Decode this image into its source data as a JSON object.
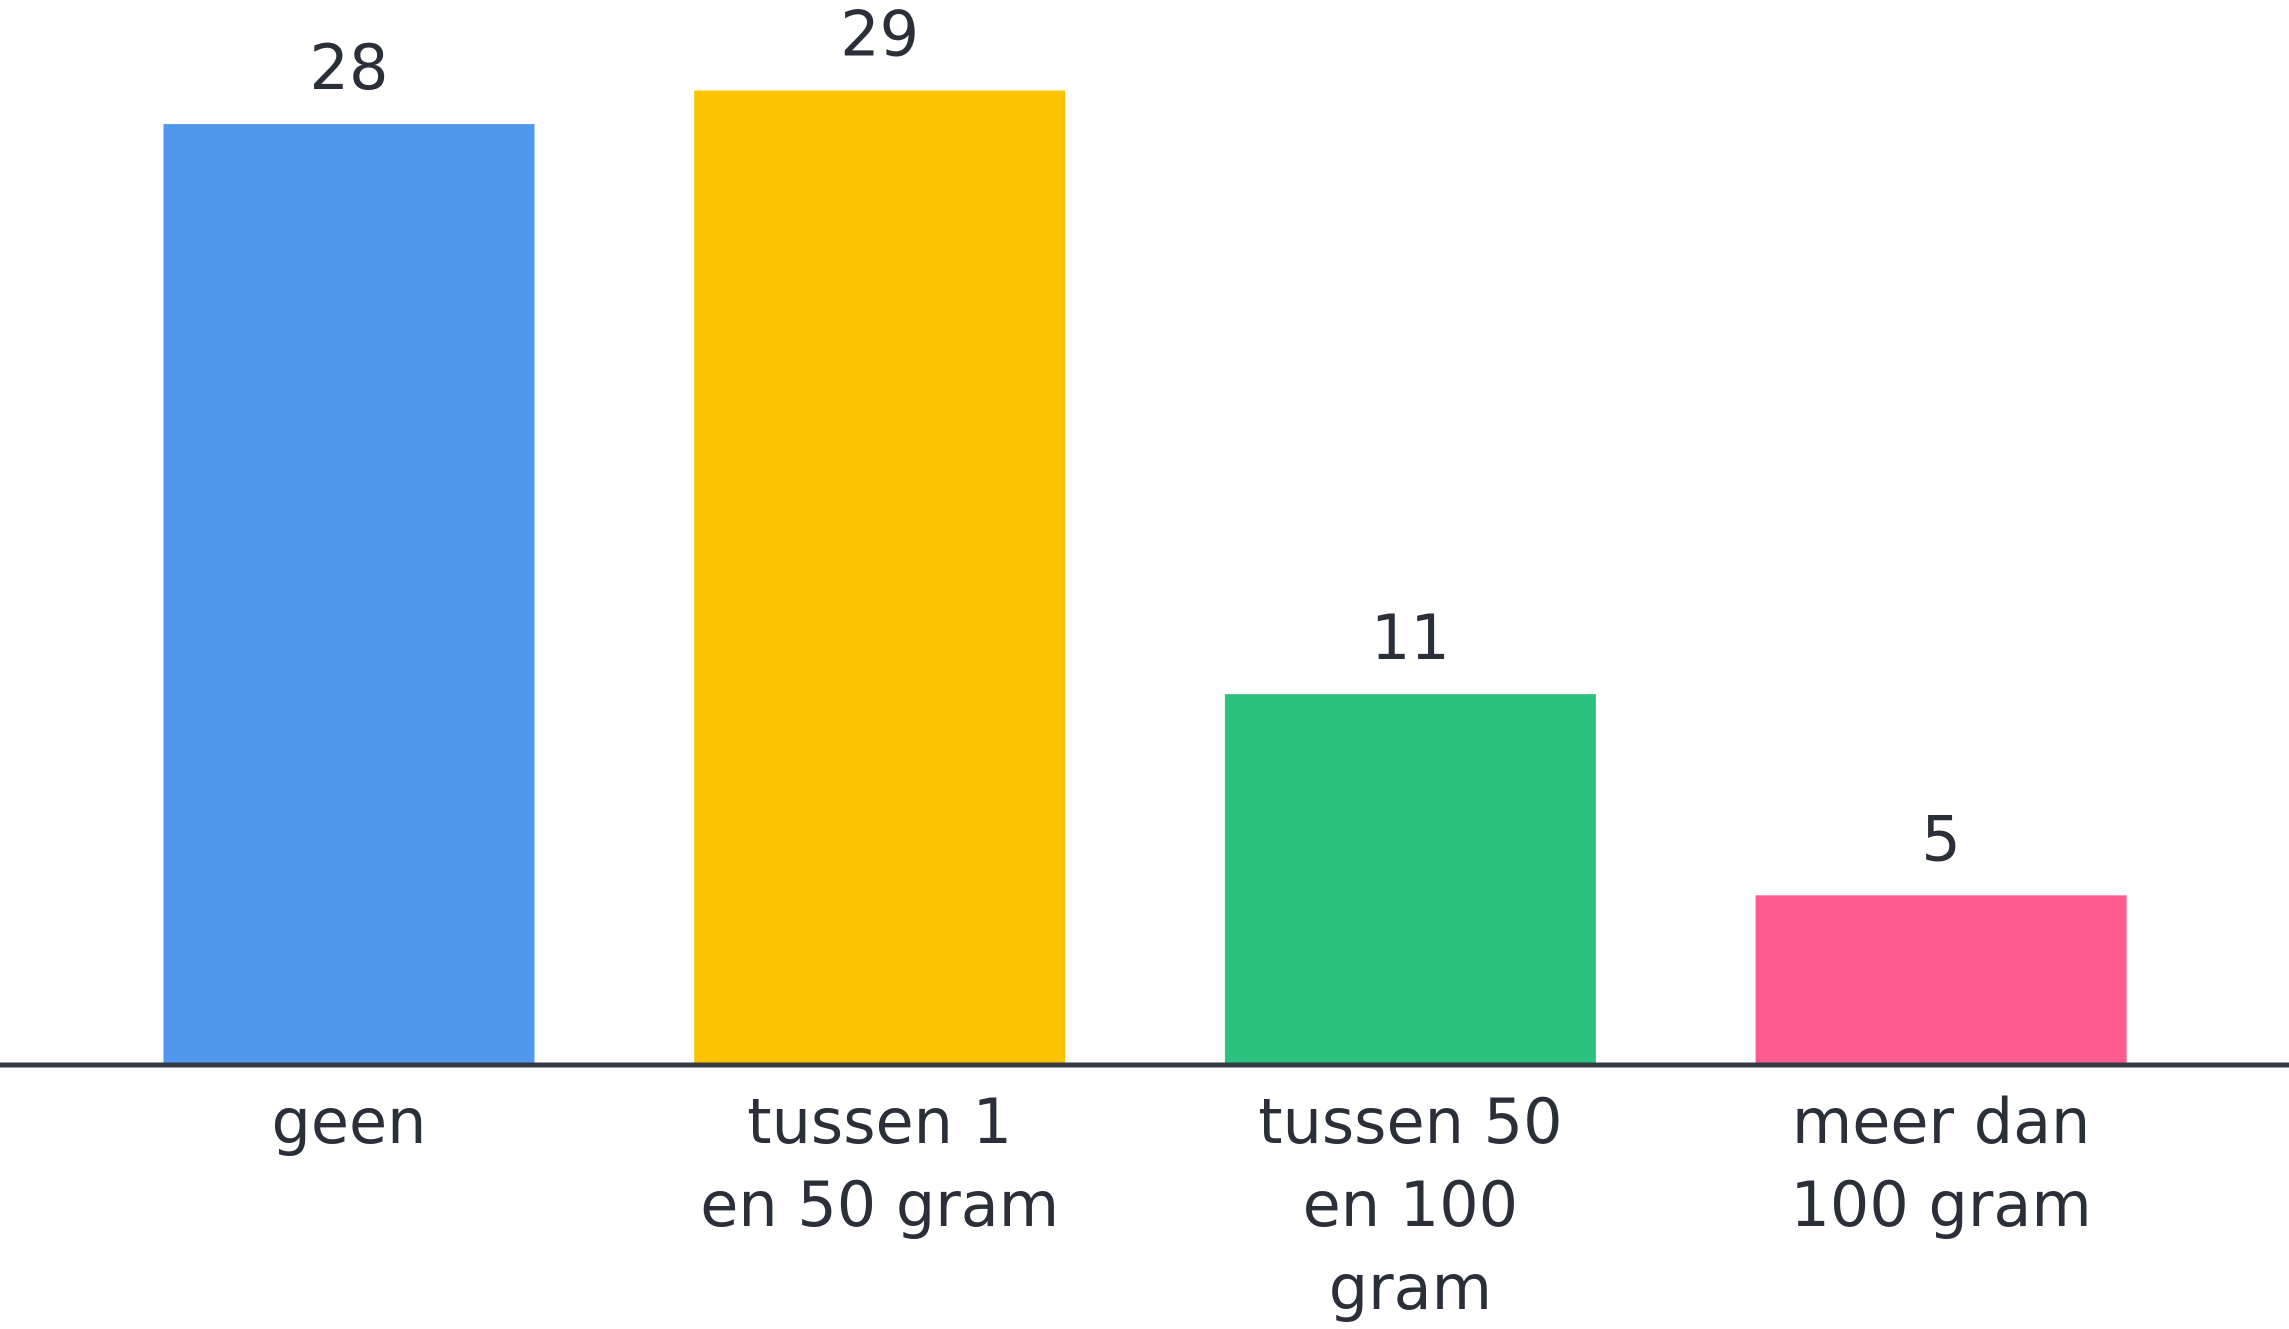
{
  "chart_data": {
    "type": "bar",
    "categories": [
      "geen",
      "tussen 1 en 50 gram",
      "tussen 50 en 100 gram",
      "meer dan 100 gram"
    ],
    "values": [
      28,
      29,
      11,
      5
    ],
    "colors": [
      "#4f98ee",
      "#fcc300",
      "#2ac27e",
      "#fe5b8e"
    ],
    "ylim": [
      0,
      31.7
    ]
  }
}
